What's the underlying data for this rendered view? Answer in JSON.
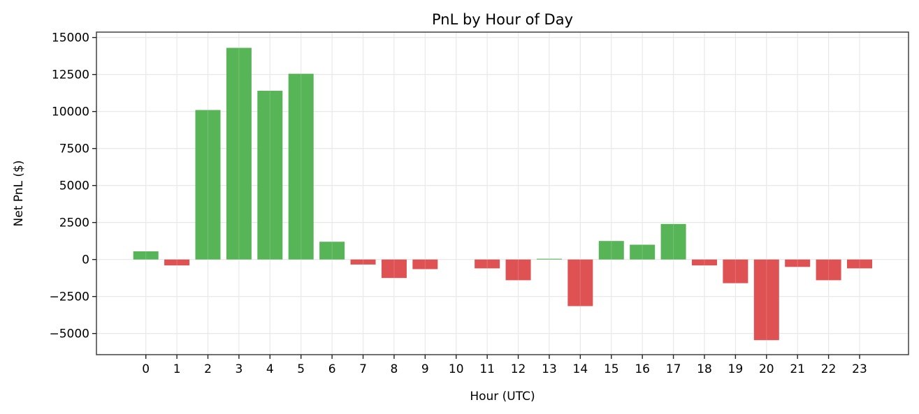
{
  "chart_data": {
    "type": "bar",
    "title": "PnL by Hour of Day",
    "xlabel": "Hour (UTC)",
    "ylabel": "Net PnL ($)",
    "categories": [
      "0",
      "1",
      "2",
      "3",
      "4",
      "5",
      "6",
      "7",
      "8",
      "9",
      "10",
      "11",
      "12",
      "13",
      "14",
      "15",
      "16",
      "17",
      "18",
      "19",
      "20",
      "21",
      "22",
      "23"
    ],
    "values": [
      550,
      -400,
      10100,
      14300,
      11400,
      12550,
      1200,
      -340,
      -1250,
      -650,
      0,
      -600,
      -1400,
      50,
      -3150,
      1250,
      1000,
      2400,
      -400,
      -1600,
      -5450,
      -500,
      -1400,
      -600
    ],
    "ylim": [
      -6200,
      15250
    ],
    "yticks": [
      -5000,
      -2500,
      0,
      2500,
      5000,
      7500,
      10000,
      12500,
      15000
    ],
    "grid": true,
    "legend": null,
    "colors": {
      "positive": "#57b457",
      "negative": "#de5254",
      "grid": "#e6e6e6",
      "spine": "#4d4d4d"
    }
  }
}
